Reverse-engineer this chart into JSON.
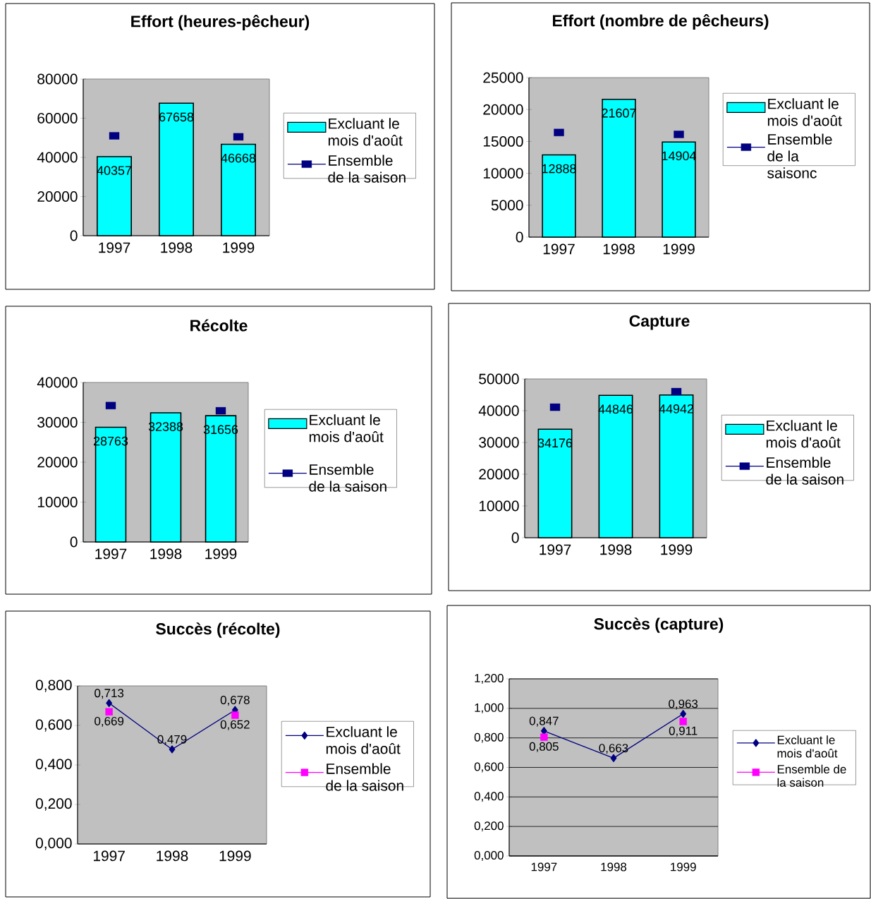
{
  "chart_data": [
    {
      "type": "bar",
      "title": "Effort (heures-pêcheur)",
      "categories": [
        "1997",
        "1998",
        "1999"
      ],
      "series": [
        {
          "name": "Excluant le mois d'août",
          "color": "#00ffff",
          "values": [
            40357,
            67658,
            46668
          ],
          "value_labels": [
            "40357",
            "67658",
            "46668"
          ]
        },
        {
          "name": "Ensemble de la saison",
          "type": "scatter",
          "color": "#000080",
          "marker": "square",
          "values": [
            51000,
            null,
            50500
          ]
        }
      ],
      "ylim": [
        0,
        80000
      ],
      "yticks": [
        0,
        20000,
        40000,
        60000,
        80000
      ],
      "legend": "right"
    },
    {
      "type": "bar",
      "title": "Effort (nombre de pêcheurs)",
      "categories": [
        "1997",
        "1998",
        "1999"
      ],
      "series": [
        {
          "name": "Excluant le mois d'août",
          "color": "#00ffff",
          "values": [
            12888,
            21607,
            14904
          ],
          "value_labels": [
            "12888",
            "21607",
            "14904"
          ]
        },
        {
          "name": "Ensemble de la saisonc",
          "type": "scatter",
          "color": "#000080",
          "marker": "square",
          "values": [
            16400,
            null,
            16100
          ]
        }
      ],
      "ylim": [
        0,
        25000
      ],
      "yticks": [
        0,
        5000,
        10000,
        15000,
        20000,
        25000
      ],
      "legend": "right"
    },
    {
      "type": "bar",
      "title": "Récolte",
      "categories": [
        "1997",
        "1998",
        "1999"
      ],
      "series": [
        {
          "name": "Excluant le mois d'août",
          "color": "#00ffff",
          "values": [
            28763,
            32388,
            31656
          ],
          "value_labels": [
            "28763",
            "32388",
            "31656"
          ]
        },
        {
          "name": "Ensemble de la saison",
          "type": "scatter",
          "color": "#000080",
          "marker": "square",
          "values": [
            34200,
            null,
            32900
          ]
        }
      ],
      "ylim": [
        0,
        40000
      ],
      "yticks": [
        0,
        10000,
        20000,
        30000,
        40000
      ],
      "legend": "right"
    },
    {
      "type": "bar",
      "title": "Capture",
      "categories": [
        "1997",
        "1998",
        "1999"
      ],
      "series": [
        {
          "name": "Excluant le mois d'août",
          "color": "#00ffff",
          "values": [
            34176,
            44846,
            44942
          ],
          "value_labels": [
            "34176",
            "44846",
            "44942"
          ]
        },
        {
          "name": "Ensemble de la saison",
          "type": "scatter",
          "color": "#000080",
          "marker": "square",
          "values": [
            41100,
            null,
            46000
          ]
        }
      ],
      "ylim": [
        0,
        50000
      ],
      "yticks": [
        0,
        10000,
        20000,
        30000,
        40000,
        50000
      ],
      "legend": "right"
    },
    {
      "type": "line",
      "title": "Succès (récolte)",
      "categories": [
        "1997",
        "1998",
        "1999"
      ],
      "series": [
        {
          "name": "Excluant le mois d'août",
          "color": "#000080",
          "marker": "diamond",
          "values": [
            0.713,
            0.479,
            0.678
          ],
          "value_labels": [
            "0,713",
            "0,479",
            "0,678"
          ]
        },
        {
          "name": "Ensemble de la saison",
          "type": "scatter",
          "color": "#ff00ff",
          "marker": "square",
          "values": [
            0.669,
            null,
            0.652
          ],
          "value_labels": [
            "0,669",
            null,
            "0,652"
          ]
        }
      ],
      "ylim": [
        0,
        0.8
      ],
      "yticks": [
        {
          "value": 0,
          "label": "0,000"
        },
        {
          "value": 0.2,
          "label": "0,200"
        },
        {
          "value": 0.4,
          "label": "0,400"
        },
        {
          "value": 0.6,
          "label": "0,600"
        },
        {
          "value": 0.8,
          "label": "0,800"
        }
      ],
      "legend": "right"
    },
    {
      "type": "line",
      "title": "Succès (capture)",
      "categories": [
        "1997",
        "1998",
        "1999"
      ],
      "series": [
        {
          "name": "Excluant le mois d'août",
          "color": "#000080",
          "marker": "diamond",
          "values": [
            0.847,
            0.663,
            0.963
          ],
          "value_labels": [
            "0,847",
            "0,663",
            "0,963"
          ]
        },
        {
          "name": "Ensemble de la saison",
          "type": "scatter",
          "color": "#ff00ff",
          "marker": "square",
          "values": [
            0.805,
            null,
            0.911
          ],
          "value_labels": [
            "0,805",
            null,
            "0,911"
          ]
        }
      ],
      "ylim": [
        0,
        1.2
      ],
      "yticks": [
        {
          "value": 0,
          "label": "0,000"
        },
        {
          "value": 0.2,
          "label": "0,200"
        },
        {
          "value": 0.4,
          "label": "0,400"
        },
        {
          "value": 0.6,
          "label": "0,600"
        },
        {
          "value": 0.8,
          "label": "0,800"
        },
        {
          "value": 1,
          "label": "1,000"
        },
        {
          "value": 1.2,
          "label": "1,200"
        }
      ],
      "grid": "y",
      "legend": "right"
    }
  ]
}
